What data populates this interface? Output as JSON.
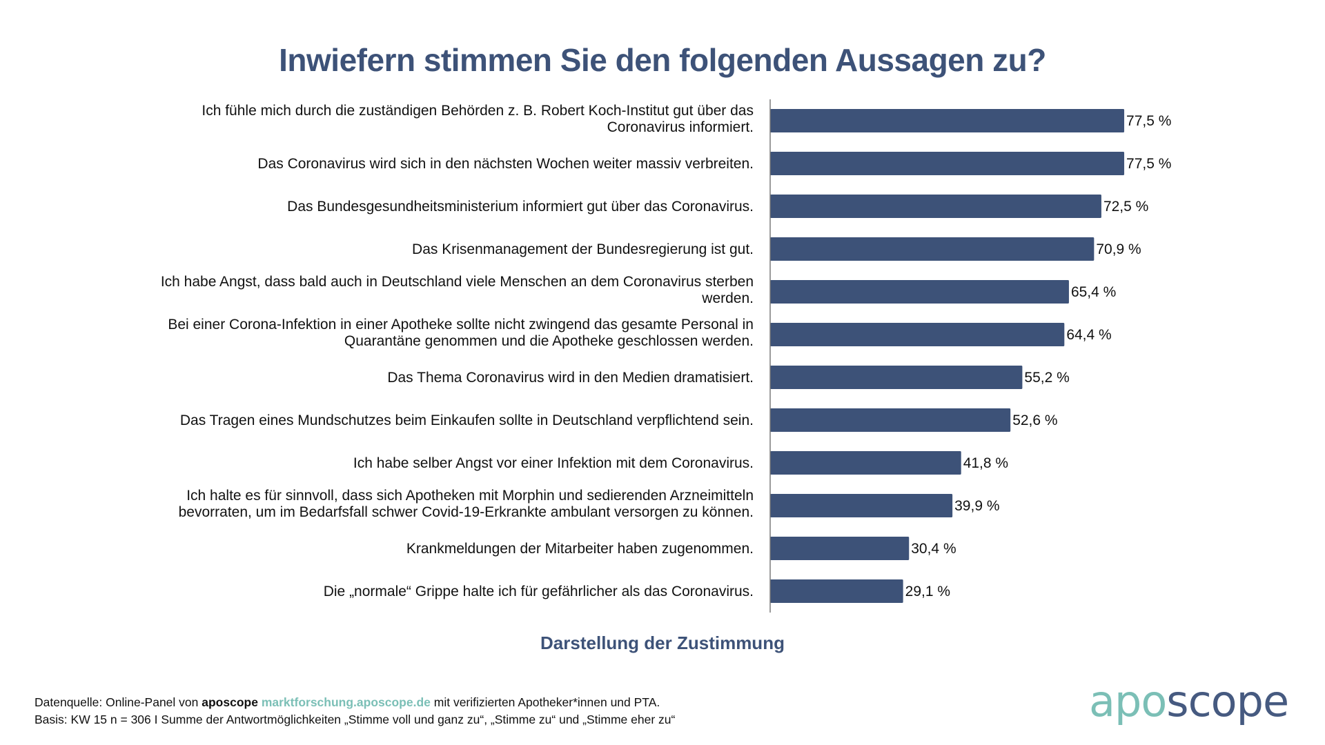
{
  "title": "Inwiefern stimmen Sie den folgenden Aussagen zu?",
  "subtitle": "Darstellung der Zustimmung",
  "colors": {
    "bar": "#3d5278",
    "title": "#3d5278",
    "logo_apo": "#7bbfb6",
    "logo_scope": "#465a80",
    "link": "#7bbfb6"
  },
  "chart_data": {
    "type": "bar",
    "orientation": "horizontal",
    "title": "Inwiefern stimmen Sie den folgenden Aussagen zu?",
    "xlabel": "Darstellung der Zustimmung",
    "ylabel": "",
    "unit": "%",
    "xlim": [
      0,
      100
    ],
    "grid": false,
    "legend": "none",
    "categories": [
      [
        "Ich fühle mich durch die zuständigen Behörden z. B. Robert Koch-Institut gut über das",
        "Coronavirus informiert."
      ],
      [
        "Das Coronavirus wird sich in den nächsten Wochen weiter massiv verbreiten."
      ],
      [
        "Das Bundesgesundheitsministerium informiert gut über das Coronavirus."
      ],
      [
        "Das Krisenmanagement der Bundesregierung ist gut."
      ],
      [
        "Ich habe Angst, dass bald auch in Deutschland viele Menschen an dem Coronavirus sterben",
        "werden."
      ],
      [
        "Bei einer Corona-Infektion in einer Apotheke sollte nicht zwingend das gesamte Personal in",
        "Quarantäne genommen und die Apotheke geschlossen werden."
      ],
      [
        "Das Thema Coronavirus wird in den Medien dramatisiert."
      ],
      [
        "Das Tragen eines Mundschutzes beim Einkaufen sollte in Deutschland verpflichtend sein."
      ],
      [
        "Ich habe selber Angst vor einer Infektion mit dem Coronavirus."
      ],
      [
        "Ich halte es für sinnvoll, dass sich Apotheken mit Morphin und sedierenden Arzneimitteln",
        "bevorraten, um im Bedarfsfall schwer Covid-19-Erkrankte ambulant versorgen zu können."
      ],
      [
        "Krankmeldungen der Mitarbeiter haben zugenommen."
      ],
      [
        "Die „normale“ Grippe halte ich für gefährlicher als das Coronavirus."
      ]
    ],
    "values": [
      77.5,
      77.5,
      72.5,
      70.9,
      65.4,
      64.4,
      55.2,
      52.6,
      41.8,
      39.9,
      30.4,
      29.1
    ],
    "value_labels": [
      "77,5 %",
      "77,5 %",
      "72,5 %",
      "70,9 %",
      "65,4 %",
      "64,4 %",
      "55,2 %",
      "52,6 %",
      "41,8 %",
      "39,9 %",
      "30,4 %",
      "29,1 %"
    ]
  },
  "footer": {
    "line1_prefix": "Datenquelle: Online-Panel von ",
    "line1_brand": "aposcope",
    "line1_link": "marktforschung.aposcope.de",
    "line1_suffix": " mit verifizierten Apotheker*innen und PTA.",
    "line2": "Basis: KW 15 n = 306 I Summe der Antwortmöglichkeiten „Stimme voll und ganz zu“, „Stimme zu“ und „Stimme eher zu“"
  },
  "logo": {
    "part1": "apo",
    "part2": "scope"
  }
}
